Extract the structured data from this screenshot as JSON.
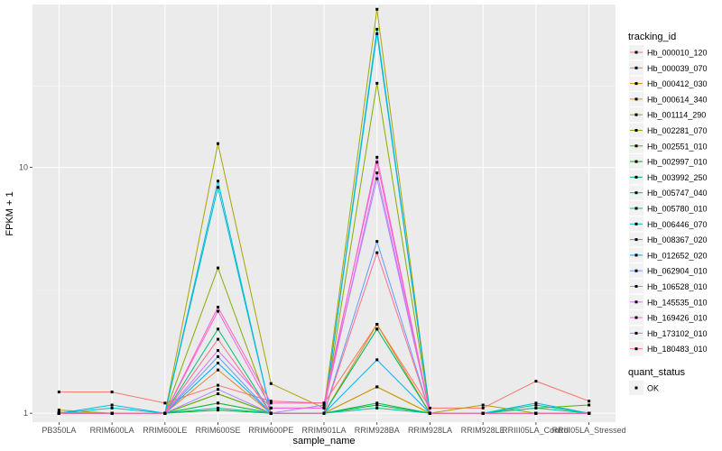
{
  "chart_data": {
    "type": "line",
    "xlabel": "sample_name",
    "ylabel": "FPKM + 1",
    "y_scale": "log10",
    "ylim": [
      0.92,
      46
    ],
    "y_ticks": [
      1,
      10
    ],
    "y_tick_labels": [
      "1",
      "10"
    ],
    "grid": true,
    "legend_position": "right",
    "legend_title": "tracking_id",
    "shape_legend_title": "quant_status",
    "shape_legend_items": [
      "OK"
    ],
    "categories": [
      "PB350LA",
      "RRIM600LA",
      "RRIM600LE",
      "RRIM600SE",
      "RRIM600PE",
      "RRIM901LA",
      "RRIM928BA",
      "RRIM928LA",
      "RRIM928LE",
      "RRIII05LA_Control",
      "RRIII05LA_Stressed"
    ],
    "series": [
      {
        "name": "Hb_000010_120",
        "color": "#F8766D",
        "values": [
          1.22,
          1.22,
          1.1,
          1.3,
          1.12,
          1.1,
          2.3,
          1.05,
          1.05,
          1.35,
          1.12
        ]
      },
      {
        "name": "Hb_000039_070",
        "color": "#EB8335",
        "values": [
          1.0,
          1.0,
          1.0,
          1.5,
          1.0,
          1.0,
          1.28,
          1.0,
          1.0,
          1.0,
          1.0
        ]
      },
      {
        "name": "Hb_000412_030",
        "color": "#DA8F00",
        "values": [
          1.01,
          1.0,
          1.0,
          1.2,
          1.0,
          1.0,
          2.3,
          1.0,
          1.0,
          1.0,
          1.0
        ]
      },
      {
        "name": "Hb_000614_340",
        "color": "#C49A00",
        "values": [
          1.0,
          1.0,
          1.0,
          1.1,
          1.0,
          1.0,
          1.28,
          1.0,
          1.0,
          1.0,
          1.0
        ]
      },
      {
        "name": "Hb_001114_290",
        "color": "#A9A400",
        "values": [
          1.03,
          1.0,
          1.0,
          12.5,
          1.32,
          1.05,
          44.0,
          1.0,
          1.08,
          1.0,
          1.0
        ]
      },
      {
        "name": "Hb_002281_070",
        "color": "#86AC00",
        "values": [
          1.0,
          1.0,
          1.0,
          3.9,
          1.0,
          1.0,
          22.0,
          1.0,
          1.0,
          1.0,
          1.0
        ]
      },
      {
        "name": "Hb_002551_010",
        "color": "#53B400",
        "values": [
          1.0,
          1.0,
          1.0,
          1.2,
          1.0,
          1.0,
          2.2,
          1.0,
          1.0,
          1.05,
          1.08
        ]
      },
      {
        "name": "Hb_002997_010",
        "color": "#00B81F",
        "values": [
          1.0,
          1.0,
          1.0,
          1.03,
          1.0,
          1.0,
          1.08,
          1.0,
          1.0,
          1.0,
          1.0
        ]
      },
      {
        "name": "Hb_003992_250",
        "color": "#00BC56",
        "values": [
          1.0,
          1.0,
          1.0,
          1.1,
          1.0,
          1.0,
          1.1,
          1.0,
          1.0,
          1.0,
          1.0
        ]
      },
      {
        "name": "Hb_005747_040",
        "color": "#00BF7D",
        "values": [
          1.0,
          1.0,
          1.0,
          2.2,
          1.0,
          1.0,
          2.2,
          1.0,
          1.0,
          1.08,
          1.0
        ]
      },
      {
        "name": "Hb_005780_010",
        "color": "#00C19F",
        "values": [
          1.0,
          1.0,
          1.0,
          1.05,
          1.0,
          1.0,
          1.05,
          1.0,
          1.0,
          1.05,
          1.0
        ]
      },
      {
        "name": "Hb_006446_070",
        "color": "#00BFC4",
        "values": [
          1.0,
          1.05,
          1.0,
          8.3,
          1.0,
          1.0,
          35.0,
          1.0,
          1.0,
          1.0,
          1.0
        ]
      },
      {
        "name": "Hb_008367_020",
        "color": "#00B8E5",
        "values": [
          1.0,
          1.08,
          1.0,
          8.8,
          1.0,
          1.0,
          36.5,
          1.0,
          1.0,
          1.1,
          1.0
        ]
      },
      {
        "name": "Hb_012652_020",
        "color": "#00ADFA",
        "values": [
          1.0,
          1.0,
          1.0,
          1.6,
          1.0,
          1.0,
          1.65,
          1.0,
          1.0,
          1.0,
          1.0
        ]
      },
      {
        "name": "Hb_062904_010",
        "color": "#619CFF",
        "values": [
          1.0,
          1.0,
          1.0,
          1.7,
          1.0,
          1.0,
          5.0,
          1.0,
          1.0,
          1.0,
          1.0
        ]
      },
      {
        "name": "Hb_106528_010",
        "color": "#AC88FF",
        "values": [
          1.0,
          1.0,
          1.0,
          1.25,
          1.0,
          1.08,
          9.0,
          1.0,
          1.0,
          1.0,
          1.0
        ]
      },
      {
        "name": "Hb_145535_010",
        "color": "#DB72FB",
        "values": [
          1.0,
          1.0,
          1.0,
          1.8,
          1.05,
          1.05,
          9.5,
          1.0,
          1.0,
          1.0,
          1.0
        ]
      },
      {
        "name": "Hb_169426_010",
        "color": "#F564E3",
        "values": [
          1.0,
          1.0,
          1.0,
          2.6,
          1.05,
          1.05,
          11.0,
          1.0,
          1.0,
          1.0,
          1.0
        ]
      },
      {
        "name": "Hb_173102_010",
        "color": "#FF62BC",
        "values": [
          1.0,
          1.0,
          1.0,
          2.7,
          1.1,
          1.1,
          10.5,
          1.0,
          1.0,
          1.0,
          1.0
        ]
      },
      {
        "name": "Hb_180483_010",
        "color": "#FF6C90",
        "values": [
          1.0,
          1.0,
          1.0,
          2.0,
          1.0,
          1.0,
          4.5,
          1.0,
          1.0,
          1.0,
          1.0
        ]
      }
    ]
  }
}
